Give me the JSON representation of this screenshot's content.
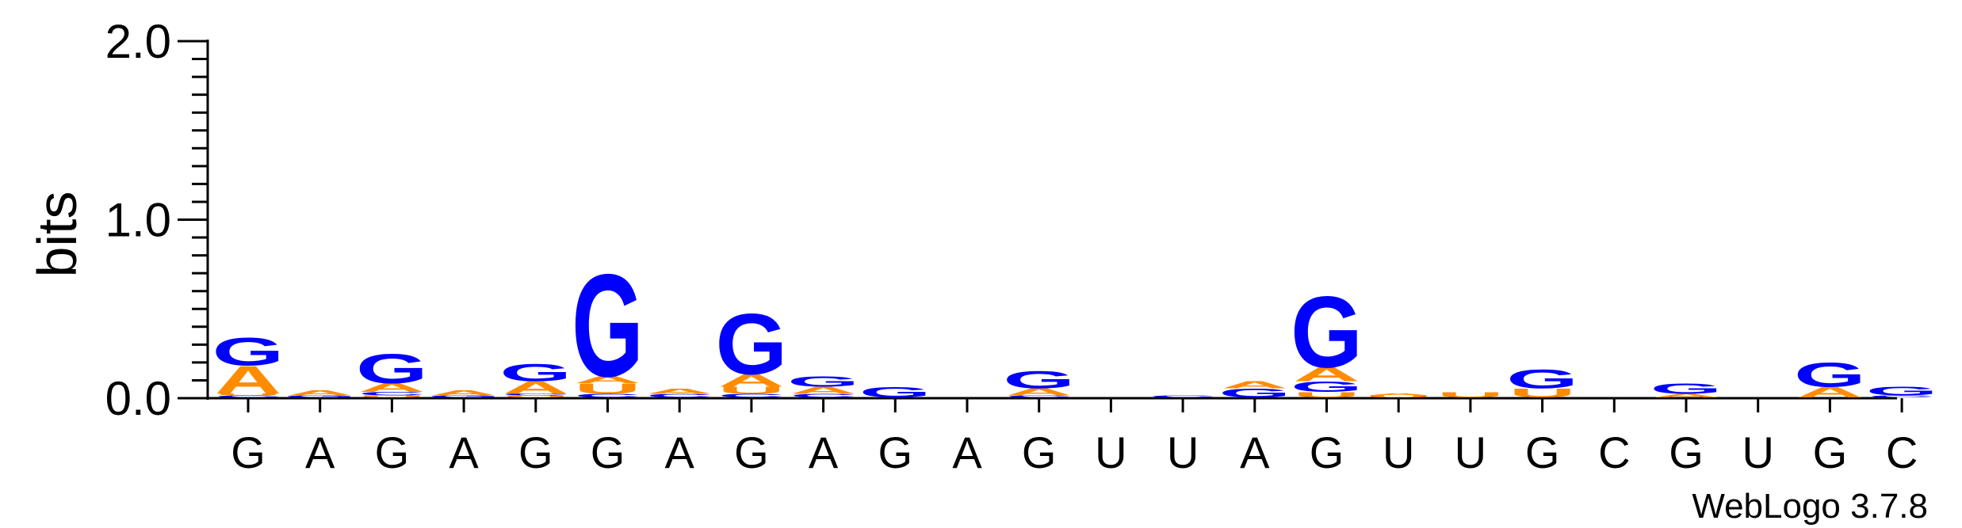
{
  "chart_data": {
    "type": "sequence-logo",
    "ylabel": "bits",
    "ylim": [
      0,
      2.0
    ],
    "y_ticks": [
      "0.0",
      "1.0",
      "2.0"
    ],
    "x_tick_labels": [
      "G",
      "A",
      "G",
      "A",
      "G",
      "G",
      "A",
      "G",
      "A",
      "G",
      "A",
      "G",
      "U",
      "U",
      "A",
      "G",
      "U",
      "U",
      "G",
      "C",
      "G",
      "U",
      "G",
      "C"
    ],
    "colors": {
      "G": "#0000ff",
      "A": "#ff8c00",
      "U": "#ff8c00",
      "C": "#0000ff"
    },
    "stacks": [
      [
        [
          "C",
          0.01
        ],
        [
          "U",
          0.01
        ],
        [
          "A",
          0.16
        ],
        [
          "G",
          0.16
        ]
      ],
      [
        [
          "G",
          0.01
        ],
        [
          "A",
          0.03
        ]
      ],
      [
        [
          "U",
          0.01
        ],
        [
          "C",
          0.02
        ],
        [
          "A",
          0.05
        ],
        [
          "G",
          0.17
        ]
      ],
      [
        [
          "G",
          0.01
        ],
        [
          "A",
          0.03
        ]
      ],
      [
        [
          "U",
          0.01
        ],
        [
          "C",
          0.01
        ],
        [
          "A",
          0.07
        ],
        [
          "G",
          0.1
        ]
      ],
      [
        [
          "C",
          0.02
        ],
        [
          "U",
          0.06
        ],
        [
          "A",
          0.04
        ],
        [
          "G",
          0.59
        ]
      ],
      [
        [
          "C",
          0.02
        ],
        [
          "A",
          0.03
        ]
      ],
      [
        [
          "C",
          0.02
        ],
        [
          "U",
          0.04
        ],
        [
          "A",
          0.07
        ],
        [
          "G",
          0.35
        ]
      ],
      [
        [
          "C",
          0.02
        ],
        [
          "A",
          0.04
        ],
        [
          "G",
          0.06
        ]
      ],
      [
        [
          "G",
          0.06
        ]
      ],
      [],
      [
        [
          "C",
          0.01
        ],
        [
          "A",
          0.04
        ],
        [
          "G",
          0.1
        ]
      ],
      [],
      [
        [
          "C",
          0.01
        ]
      ],
      [
        [
          "G",
          0.05
        ],
        [
          "A",
          0.04
        ]
      ],
      [
        [
          "U",
          0.03
        ],
        [
          "G",
          0.06
        ],
        [
          "A",
          0.08
        ],
        [
          "G",
          0.41
        ]
      ],
      [
        [
          "U",
          0.01
        ],
        [
          "A",
          0.01
        ]
      ],
      [
        [
          "U",
          0.03
        ]
      ],
      [
        [
          "U",
          0.05
        ],
        [
          "G",
          0.11
        ]
      ],
      [],
      [
        [
          "A",
          0.02
        ],
        [
          "G",
          0.06
        ]
      ],
      [],
      [
        [
          "A",
          0.06
        ],
        [
          "G",
          0.14
        ]
      ],
      [
        [
          "C",
          0.01
        ],
        [
          "G",
          0.05
        ]
      ]
    ],
    "watermark": "WebLogo 3.7.8"
  }
}
